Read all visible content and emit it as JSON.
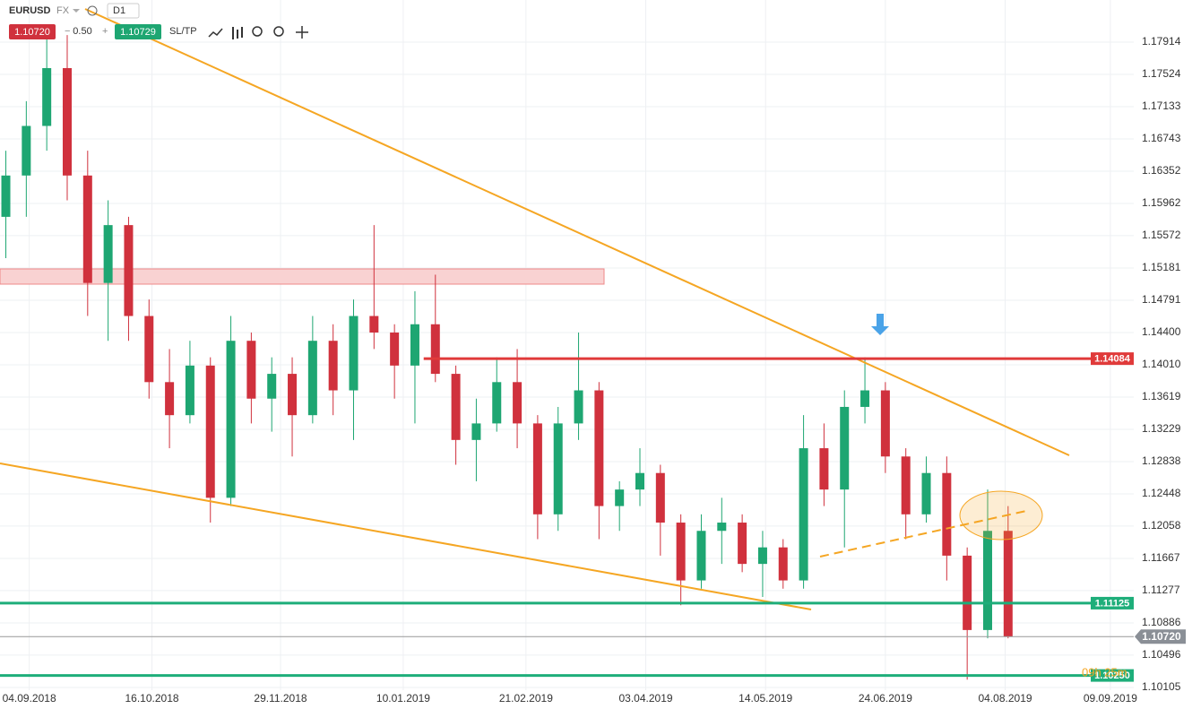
{
  "toolbar": {
    "symbol": "EURUSD",
    "market": "FX",
    "timeframe": "D1",
    "bid": "1.10720",
    "lot": "0.50",
    "ask": "1.10729",
    "sltp": "SL/TP"
  },
  "chart_data": {
    "type": "candlestick",
    "up_color": "#1ea672",
    "down_color": "#d0313d",
    "xlim": [
      "25.08.2018",
      "17.09.2019"
    ],
    "ylim": [
      1.10072,
      1.18424
    ],
    "xticks": [
      "04.09.2018",
      "16.10.2018",
      "29.11.2018",
      "10.01.2019",
      "21.02.2019",
      "03.04.2019",
      "14.05.2019",
      "24.06.2019",
      "04.08.2019",
      "09.09.2019"
    ],
    "yticks": [
      1.17914,
      1.17524,
      1.17133,
      1.16743,
      1.16352,
      1.15962,
      1.15572,
      1.15181,
      1.14791,
      {
        "value": 1.144,
        "label": "1.14400"
      },
      {
        "value": 1.1401,
        "label": "1.14010"
      },
      1.13619,
      1.13229,
      1.12838,
      1.12448,
      1.12058,
      1.11667,
      1.11277,
      1.10886,
      1.10496,
      1.10105
    ],
    "levels": [
      {
        "value": 1.14084,
        "color": "#e03a3a",
        "from": "17.01.2019"
      },
      {
        "value": 1.11125,
        "color": "#1eae7a",
        "from": "25.08.2018"
      },
      {
        "value": 1.1025,
        "label": "1.10250",
        "color": "#1eae7a",
        "from": "25.08.2018"
      }
    ],
    "current_price": {
      "value": 1.1072,
      "label": "1.10720"
    },
    "timer": "09h 25m",
    "candles": [
      {
        "x": "27.08.2018",
        "open": 1.158,
        "high": 1.166,
        "low": 1.153,
        "close": 1.163
      },
      {
        "x": "03.09.2018",
        "open": 1.163,
        "high": 1.172,
        "low": 1.158,
        "close": 1.169
      },
      {
        "x": "10.09.2018",
        "open": 1.169,
        "high": 1.181,
        "low": 1.166,
        "close": 1.176
      },
      {
        "x": "17.09.2018",
        "open": 1.176,
        "high": 1.18,
        "low": 1.16,
        "close": 1.163
      },
      {
        "x": "24.09.2018",
        "open": 1.163,
        "high": 1.166,
        "low": 1.146,
        "close": 1.15
      },
      {
        "x": "01.10.2018",
        "open": 1.15,
        "high": 1.16,
        "low": 1.143,
        "close": 1.157
      },
      {
        "x": "08.10.2018",
        "open": 1.157,
        "high": 1.158,
        "low": 1.143,
        "close": 1.146
      },
      {
        "x": "15.10.2018",
        "open": 1.146,
        "high": 1.148,
        "low": 1.136,
        "close": 1.138
      },
      {
        "x": "22.10.2018",
        "open": 1.138,
        "high": 1.142,
        "low": 1.13,
        "close": 1.134
      },
      {
        "x": "29.10.2018",
        "open": 1.134,
        "high": 1.143,
        "low": 1.133,
        "close": 1.14
      },
      {
        "x": "05.11.2018",
        "open": 1.14,
        "high": 1.141,
        "low": 1.121,
        "close": 1.124
      },
      {
        "x": "12.11.2018",
        "open": 1.124,
        "high": 1.146,
        "low": 1.123,
        "close": 1.143
      },
      {
        "x": "19.11.2018",
        "open": 1.143,
        "high": 1.144,
        "low": 1.133,
        "close": 1.136
      },
      {
        "x": "26.11.2018",
        "open": 1.136,
        "high": 1.141,
        "low": 1.132,
        "close": 1.139
      },
      {
        "x": "03.12.2018",
        "open": 1.139,
        "high": 1.141,
        "low": 1.129,
        "close": 1.134
      },
      {
        "x": "10.12.2018",
        "open": 1.134,
        "high": 1.146,
        "low": 1.133,
        "close": 1.143
      },
      {
        "x": "17.12.2018",
        "open": 1.143,
        "high": 1.145,
        "low": 1.134,
        "close": 1.137
      },
      {
        "x": "24.12.2018",
        "open": 1.137,
        "high": 1.148,
        "low": 1.131,
        "close": 1.146
      },
      {
        "x": "31.12.2018",
        "open": 1.146,
        "high": 1.157,
        "low": 1.142,
        "close": 1.144
      },
      {
        "x": "07.01.2019",
        "open": 1.144,
        "high": 1.145,
        "low": 1.136,
        "close": 1.14
      },
      {
        "x": "14.01.2019",
        "open": 1.14,
        "high": 1.149,
        "low": 1.133,
        "close": 1.145
      },
      {
        "x": "21.01.2019",
        "open": 1.145,
        "high": 1.151,
        "low": 1.138,
        "close": 1.139
      },
      {
        "x": "28.01.2019",
        "open": 1.139,
        "high": 1.14,
        "low": 1.128,
        "close": 1.131
      },
      {
        "x": "04.02.2019",
        "open": 1.131,
        "high": 1.136,
        "low": 1.126,
        "close": 1.133
      },
      {
        "x": "11.02.2019",
        "open": 1.133,
        "high": 1.141,
        "low": 1.132,
        "close": 1.138
      },
      {
        "x": "18.02.2019",
        "open": 1.138,
        "high": 1.142,
        "low": 1.13,
        "close": 1.133
      },
      {
        "x": "25.02.2019",
        "open": 1.133,
        "high": 1.134,
        "low": 1.119,
        "close": 1.122
      },
      {
        "x": "04.03.2019",
        "open": 1.122,
        "high": 1.135,
        "low": 1.12,
        "close": 1.133
      },
      {
        "x": "11.03.2019",
        "open": 1.133,
        "high": 1.144,
        "low": 1.131,
        "close": 1.137
      },
      {
        "x": "18.03.2019",
        "open": 1.137,
        "high": 1.138,
        "low": 1.119,
        "close": 1.123
      },
      {
        "x": "25.03.2019",
        "open": 1.123,
        "high": 1.126,
        "low": 1.12,
        "close": 1.125
      },
      {
        "x": "01.04.2019",
        "open": 1.125,
        "high": 1.13,
        "low": 1.123,
        "close": 1.127
      },
      {
        "x": "08.04.2019",
        "open": 1.127,
        "high": 1.128,
        "low": 1.117,
        "close": 1.121
      },
      {
        "x": "15.04.2019",
        "open": 1.121,
        "high": 1.122,
        "low": 1.111,
        "close": 1.114
      },
      {
        "x": "22.04.2019",
        "open": 1.114,
        "high": 1.122,
        "low": 1.113,
        "close": 1.12
      },
      {
        "x": "29.04.2019",
        "open": 1.12,
        "high": 1.124,
        "low": 1.116,
        "close": 1.121
      },
      {
        "x": "06.05.2019",
        "open": 1.121,
        "high": 1.122,
        "low": 1.115,
        "close": 1.116
      },
      {
        "x": "13.05.2019",
        "open": 1.116,
        "high": 1.12,
        "low": 1.112,
        "close": 1.118
      },
      {
        "x": "20.05.2019",
        "open": 1.118,
        "high": 1.119,
        "low": 1.113,
        "close": 1.114
      },
      {
        "x": "27.05.2019",
        "open": 1.114,
        "high": 1.134,
        "low": 1.113,
        "close": 1.13
      },
      {
        "x": "03.06.2019",
        "open": 1.13,
        "high": 1.133,
        "low": 1.123,
        "close": 1.125
      },
      {
        "x": "10.06.2019",
        "open": 1.125,
        "high": 1.137,
        "low": 1.118,
        "close": 1.135
      },
      {
        "x": "17.06.2019",
        "open": 1.135,
        "high": 1.141,
        "low": 1.133,
        "close": 1.137
      },
      {
        "x": "24.06.2019",
        "open": 1.137,
        "high": 1.138,
        "low": 1.127,
        "close": 1.129
      },
      {
        "x": "01.07.2019",
        "open": 1.129,
        "high": 1.13,
        "low": 1.119,
        "close": 1.122
      },
      {
        "x": "08.07.2019",
        "open": 1.122,
        "high": 1.129,
        "low": 1.121,
        "close": 1.127
      },
      {
        "x": "15.07.2019",
        "open": 1.127,
        "high": 1.129,
        "low": 1.114,
        "close": 1.117
      },
      {
        "x": "22.07.2019",
        "open": 1.117,
        "high": 1.118,
        "low": 1.102,
        "close": 1.108
      },
      {
        "x": "29.07.2019",
        "open": 1.108,
        "high": 1.125,
        "low": 1.107,
        "close": 1.12
      },
      {
        "x": "05.08.2019",
        "open": 1.12,
        "high": 1.123,
        "low": 1.107,
        "close": 1.1072
      }
    ]
  }
}
